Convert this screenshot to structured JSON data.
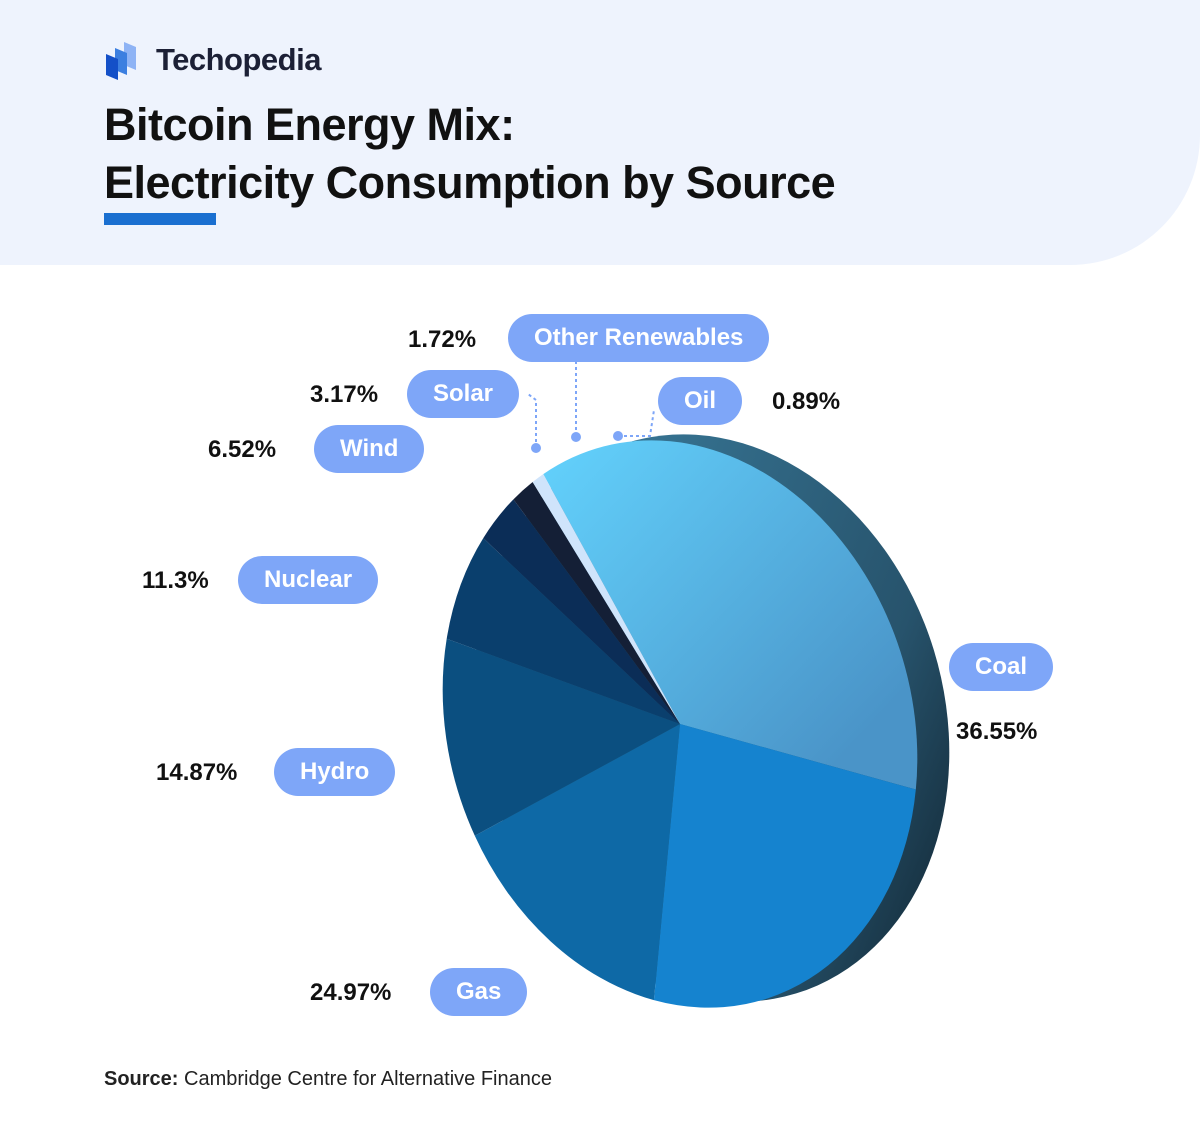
{
  "brand": {
    "name": "Techopedia"
  },
  "title_line1": "Bitcoin Energy Mix:",
  "title_line2": "Electricity Consumption by Source",
  "source": {
    "label": "Source:",
    "text": "Cambridge Centre for Alternative Finance"
  },
  "chart_data": {
    "type": "pie",
    "title": "Bitcoin Energy Mix: Electricity Consumption by Source",
    "categories": [
      "Coal",
      "Gas",
      "Hydro",
      "Nuclear",
      "Wind",
      "Solar",
      "Other Renewables",
      "Oil"
    ],
    "values": [
      36.55,
      24.97,
      14.87,
      11.3,
      6.52,
      3.17,
      1.72,
      0.89
    ],
    "labels": [
      "36.55%",
      "24.97%",
      "14.87%",
      "11.3%",
      "6.52%",
      "3.17%",
      "1.72%",
      "0.89%"
    ],
    "colors": [
      "#57b6ea",
      "#1583cf",
      "#0e69a6",
      "#0b4f80",
      "#0a3f6d",
      "#0b2d57",
      "#141f36",
      "#cfe4fb"
    ]
  }
}
